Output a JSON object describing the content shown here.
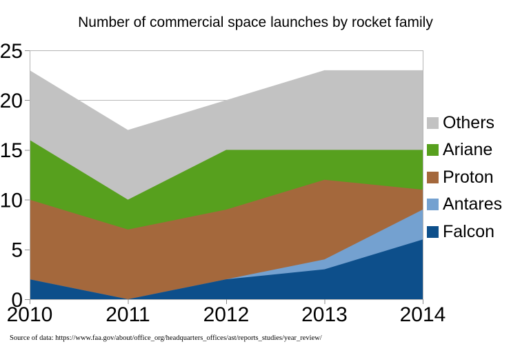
{
  "source_note": "Source of data: https://www.faa.gov/about/office_org/headquarters_offices/ast/reports_studies/year_review/",
  "colors": {
    "falcon": "#0d4f8b",
    "antares": "#74a1d0",
    "proton": "#a4683c",
    "ariane": "#57a01e",
    "others": "#c2c2c2",
    "gridline": "#b8b8b8",
    "plot_border": "#b3b3b3",
    "tick": "#8a8a8a",
    "text": "#000000"
  },
  "chart_data": {
    "type": "area",
    "stacked": true,
    "title": "Number of commercial space launches by rocket family",
    "categories": [
      "2010",
      "2011",
      "2012",
      "2013",
      "2014"
    ],
    "series": [
      {
        "name": "Falcon",
        "color_key": "falcon",
        "values": [
          2,
          0,
          2,
          3,
          6
        ]
      },
      {
        "name": "Antares",
        "color_key": "antares",
        "values": [
          0,
          0,
          0,
          1,
          3
        ]
      },
      {
        "name": "Proton",
        "color_key": "proton",
        "values": [
          8,
          7,
          7,
          8,
          2
        ]
      },
      {
        "name": "Ariane",
        "color_key": "ariane",
        "values": [
          6,
          3,
          6,
          3,
          4
        ]
      },
      {
        "name": "Others",
        "color_key": "others",
        "values": [
          7,
          7,
          5,
          8,
          8
        ]
      }
    ],
    "totals_by_year": [
      23,
      17,
      20,
      23,
      23
    ],
    "xlabel": "",
    "ylabel": "",
    "ylim": [
      0,
      25
    ],
    "ytick_step": 5,
    "grid": "horizontal",
    "legend_position": "right",
    "legend_order": [
      "Others",
      "Ariane",
      "Proton",
      "Antares",
      "Falcon"
    ]
  }
}
